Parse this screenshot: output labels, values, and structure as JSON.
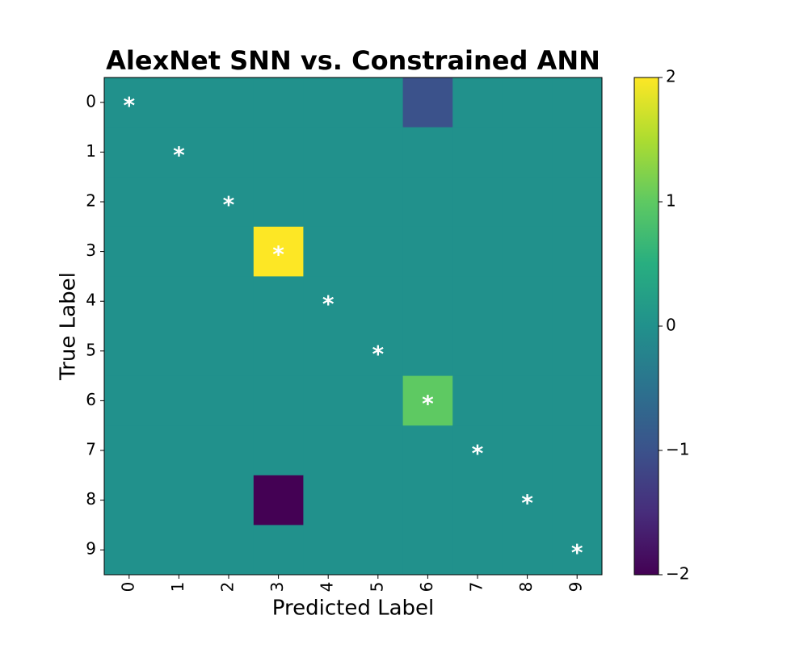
{
  "chart_data": {
    "type": "heatmap",
    "title": "AlexNet SNN vs. Constrained ANN",
    "xlabel": "Predicted Label",
    "ylabel": "True Label",
    "x_categories": [
      "0",
      "1",
      "2",
      "3",
      "4",
      "5",
      "6",
      "7",
      "8",
      "9"
    ],
    "y_categories": [
      "0",
      "1",
      "2",
      "3",
      "4",
      "5",
      "6",
      "7",
      "8",
      "9"
    ],
    "z": [
      [
        0,
        0,
        0,
        0,
        0,
        0,
        -1,
        0,
        0,
        0
      ],
      [
        0,
        0,
        0,
        0,
        0,
        0,
        0,
        0,
        0,
        0
      ],
      [
        0,
        0,
        0,
        0,
        0,
        0,
        0,
        0,
        0,
        0
      ],
      [
        0,
        0,
        0,
        2,
        0,
        0,
        0,
        0,
        0,
        0
      ],
      [
        0,
        0,
        0,
        0,
        0,
        0,
        0,
        0,
        0,
        0
      ],
      [
        0,
        0,
        0,
        0,
        0,
        0,
        0,
        0,
        0,
        0
      ],
      [
        0,
        0,
        0,
        0,
        0,
        0,
        1,
        0,
        0,
        0
      ],
      [
        0,
        0,
        0,
        0,
        0,
        0,
        0,
        0,
        0,
        0
      ],
      [
        0,
        0,
        0,
        -2,
        0,
        0,
        0,
        0,
        0,
        0
      ],
      [
        0,
        0,
        0,
        0,
        0,
        0,
        0,
        0,
        0,
        0
      ]
    ],
    "cell_labels": [
      [
        "*",
        null,
        null,
        null,
        null,
        null,
        null,
        null,
        null,
        null
      ],
      [
        null,
        "*",
        null,
        null,
        null,
        null,
        null,
        null,
        null,
        null
      ],
      [
        null,
        null,
        "*",
        null,
        null,
        null,
        null,
        null,
        null,
        null
      ],
      [
        null,
        null,
        null,
        "*",
        null,
        null,
        null,
        null,
        null,
        null
      ],
      [
        null,
        null,
        null,
        null,
        "*",
        null,
        null,
        null,
        null,
        null
      ],
      [
        null,
        null,
        null,
        null,
        null,
        "*",
        null,
        null,
        null,
        null
      ],
      [
        null,
        null,
        null,
        null,
        null,
        null,
        "*",
        null,
        null,
        null
      ],
      [
        null,
        null,
        null,
        null,
        null,
        null,
        null,
        "*",
        null,
        null
      ],
      [
        null,
        null,
        null,
        null,
        null,
        null,
        null,
        null,
        "*",
        null
      ],
      [
        null,
        null,
        null,
        null,
        null,
        null,
        null,
        null,
        null,
        "*"
      ]
    ],
    "colormap": "viridis",
    "clim": [
      -2,
      2
    ],
    "cticks": [
      {
        "value": -2,
        "label": "−2"
      },
      {
        "value": -1,
        "label": "−1"
      },
      0,
      1,
      2
    ]
  }
}
